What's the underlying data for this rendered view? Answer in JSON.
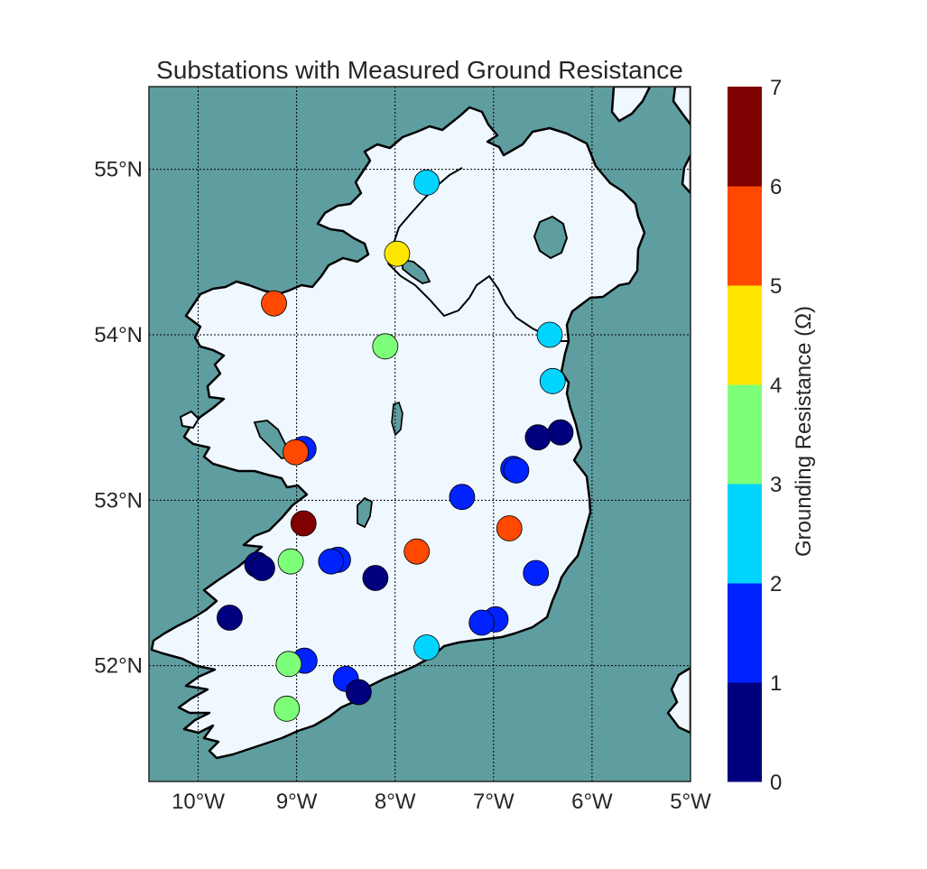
{
  "title": "Substations with Measured Ground Resistance",
  "colorbar": {
    "label": "Grounding Resistance (Ω)",
    "ticks": [
      "0",
      "1",
      "2",
      "3",
      "4",
      "5",
      "6",
      "7"
    ],
    "colors": [
      "#00007f",
      "#0022ff",
      "#00d4ff",
      "#7dff7a",
      "#ffe600",
      "#ff4800",
      "#7f0000"
    ]
  },
  "map": {
    "sea_color": "#5f9ea0",
    "land_color": "#f0f8ff",
    "lon_ticks": [
      "10°W",
      "9°W",
      "8°W",
      "7°W",
      "6°W",
      "5°W"
    ],
    "lat_ticks": [
      "55°N",
      "54°N",
      "53°N",
      "52°N"
    ],
    "gridlines": "dotted"
  },
  "chart_data": {
    "type": "scatter",
    "title": "Substations with Measured Ground Resistance",
    "xlabel": "",
    "ylabel": "",
    "xlim": [
      -10.5,
      -5.0
    ],
    "ylim": [
      51.3,
      55.5
    ],
    "colorbar_range": [
      0,
      7
    ],
    "points": [
      {
        "lon": -7.68,
        "lat": 54.92,
        "value": 2.5
      },
      {
        "lon": -7.98,
        "lat": 54.49,
        "value": 4.5
      },
      {
        "lon": -9.23,
        "lat": 54.19,
        "value": 5.5
      },
      {
        "lon": -8.1,
        "lat": 53.93,
        "value": 3.5
      },
      {
        "lon": -6.43,
        "lat": 54.0,
        "value": 2.5
      },
      {
        "lon": -6.4,
        "lat": 53.72,
        "value": 2.5
      },
      {
        "lon": -6.32,
        "lat": 53.41,
        "value": 0.5
      },
      {
        "lon": -6.55,
        "lat": 53.38,
        "value": 0.5
      },
      {
        "lon": -8.93,
        "lat": 53.31,
        "value": 1.5
      },
      {
        "lon": -9.01,
        "lat": 53.29,
        "value": 5.5
      },
      {
        "lon": -6.8,
        "lat": 53.19,
        "value": 1.5
      },
      {
        "lon": -6.77,
        "lat": 53.18,
        "value": 1.5
      },
      {
        "lon": -7.32,
        "lat": 53.02,
        "value": 1.5
      },
      {
        "lon": -6.84,
        "lat": 52.83,
        "value": 5.5
      },
      {
        "lon": -8.93,
        "lat": 52.86,
        "value": 6.5
      },
      {
        "lon": -7.78,
        "lat": 52.69,
        "value": 5.5
      },
      {
        "lon": -8.58,
        "lat": 52.64,
        "value": 1.5
      },
      {
        "lon": -8.65,
        "lat": 52.63,
        "value": 1.5
      },
      {
        "lon": -9.06,
        "lat": 52.63,
        "value": 3.5
      },
      {
        "lon": -9.4,
        "lat": 52.61,
        "value": 0.5
      },
      {
        "lon": -9.35,
        "lat": 52.59,
        "value": 0.5
      },
      {
        "lon": -6.57,
        "lat": 52.56,
        "value": 1.5
      },
      {
        "lon": -8.2,
        "lat": 52.53,
        "value": 0.5
      },
      {
        "lon": -9.68,
        "lat": 52.29,
        "value": 0.5
      },
      {
        "lon": -6.98,
        "lat": 52.28,
        "value": 1.5
      },
      {
        "lon": -7.12,
        "lat": 52.26,
        "value": 1.5
      },
      {
        "lon": -7.68,
        "lat": 52.11,
        "value": 2.5
      },
      {
        "lon": -8.92,
        "lat": 52.03,
        "value": 1.5
      },
      {
        "lon": -9.08,
        "lat": 52.01,
        "value": 3.5
      },
      {
        "lon": -8.5,
        "lat": 51.92,
        "value": 1.5
      },
      {
        "lon": -8.37,
        "lat": 51.84,
        "value": 0.5
      },
      {
        "lon": -9.1,
        "lat": 51.74,
        "value": 3.5
      }
    ]
  }
}
